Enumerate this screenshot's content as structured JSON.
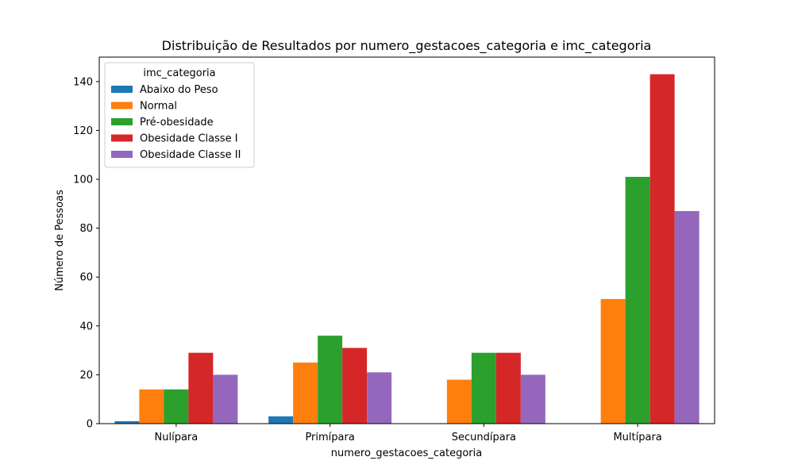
{
  "chart_data": {
    "type": "bar",
    "title": "Distribuição de Resultados por numero_gestacoes_categoria e imc_categoria",
    "xlabel": "numero_gestacoes_categoria",
    "ylabel": "Número de Pessoas",
    "categories": [
      "Nulípara",
      "Primípara",
      "Secundípara",
      "Multípara"
    ],
    "ylim": [
      0,
      150
    ],
    "yticks": [
      0,
      20,
      40,
      60,
      80,
      100,
      120,
      140
    ],
    "grid": false,
    "legend": {
      "title": "imc_categoria",
      "placement": "top-left"
    },
    "series": [
      {
        "name": "Abaixo do Peso",
        "color": "#1f77b4",
        "values": [
          1,
          3,
          0,
          0
        ]
      },
      {
        "name": "Normal",
        "color": "#ff7f0e",
        "values": [
          14,
          25,
          18,
          51
        ]
      },
      {
        "name": "Pré-obesidade",
        "color": "#2ca02c",
        "values": [
          14,
          36,
          29,
          101
        ]
      },
      {
        "name": "Obesidade Classe I",
        "color": "#d62728",
        "values": [
          29,
          31,
          29,
          143
        ]
      },
      {
        "name": "Obesidade Classe II",
        "color": "#9467bd",
        "values": [
          20,
          21,
          20,
          87
        ]
      }
    ]
  }
}
